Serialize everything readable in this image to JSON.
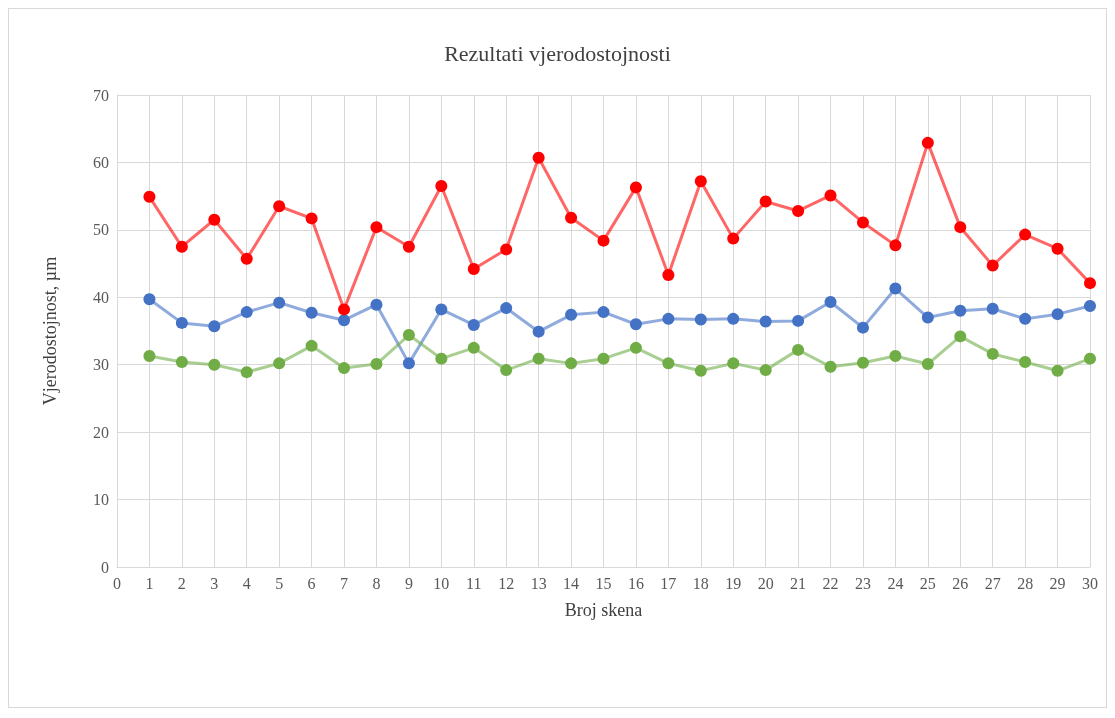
{
  "chart_data": {
    "type": "line",
    "title": "Rezultati vjerodostojnosti",
    "xlabel": "Broj skena",
    "ylabel": "Vjerodostojnost, µm",
    "x": [
      1,
      2,
      3,
      4,
      5,
      6,
      7,
      8,
      9,
      10,
      11,
      12,
      13,
      14,
      15,
      16,
      17,
      18,
      19,
      20,
      21,
      22,
      23,
      24,
      25,
      26,
      27,
      28,
      29,
      30
    ],
    "series": [
      {
        "color": "#4472c4",
        "values": [
          39.7,
          36.2,
          35.7,
          37.8,
          39.2,
          37.7,
          36.6,
          38.9,
          30.2,
          38.2,
          35.9,
          38.4,
          34.9,
          37.4,
          37.8,
          36.0,
          36.8,
          36.7,
          36.8,
          36.4,
          36.5,
          39.3,
          35.5,
          41.3,
          37.0,
          38.0,
          38.3,
          36.8,
          37.5,
          38.7
        ]
      },
      {
        "color": "#70ad47",
        "values": [
          31.3,
          30.4,
          30.0,
          28.9,
          30.2,
          32.8,
          29.5,
          30.1,
          34.4,
          30.9,
          32.5,
          29.2,
          30.9,
          30.2,
          30.9,
          32.5,
          30.2,
          29.1,
          30.2,
          29.2,
          32.2,
          29.7,
          30.3,
          31.3,
          30.1,
          34.2,
          31.6,
          30.4,
          29.1,
          30.9
        ]
      },
      {
        "color": "#ff0000",
        "values": [
          54.9,
          47.5,
          51.5,
          45.7,
          53.5,
          51.7,
          38.2,
          50.4,
          47.5,
          56.5,
          44.2,
          47.1,
          60.7,
          51.8,
          48.4,
          56.3,
          43.3,
          57.2,
          48.7,
          54.2,
          52.8,
          55.1,
          51.1,
          47.7,
          62.9,
          50.4,
          44.7,
          49.3,
          47.2,
          42.1
        ]
      }
    ],
    "xlim": [
      0,
      30
    ],
    "xticks": [
      0,
      1,
      2,
      3,
      4,
      5,
      6,
      7,
      8,
      9,
      10,
      11,
      12,
      13,
      14,
      15,
      16,
      17,
      18,
      19,
      20,
      21,
      22,
      23,
      24,
      25,
      26,
      27,
      28,
      29,
      30
    ],
    "ylim": [
      0,
      70
    ],
    "yticks": [
      0,
      10,
      20,
      30,
      40,
      50,
      60,
      70
    ],
    "grid": true,
    "marker": "circle",
    "line_style": "solid"
  }
}
